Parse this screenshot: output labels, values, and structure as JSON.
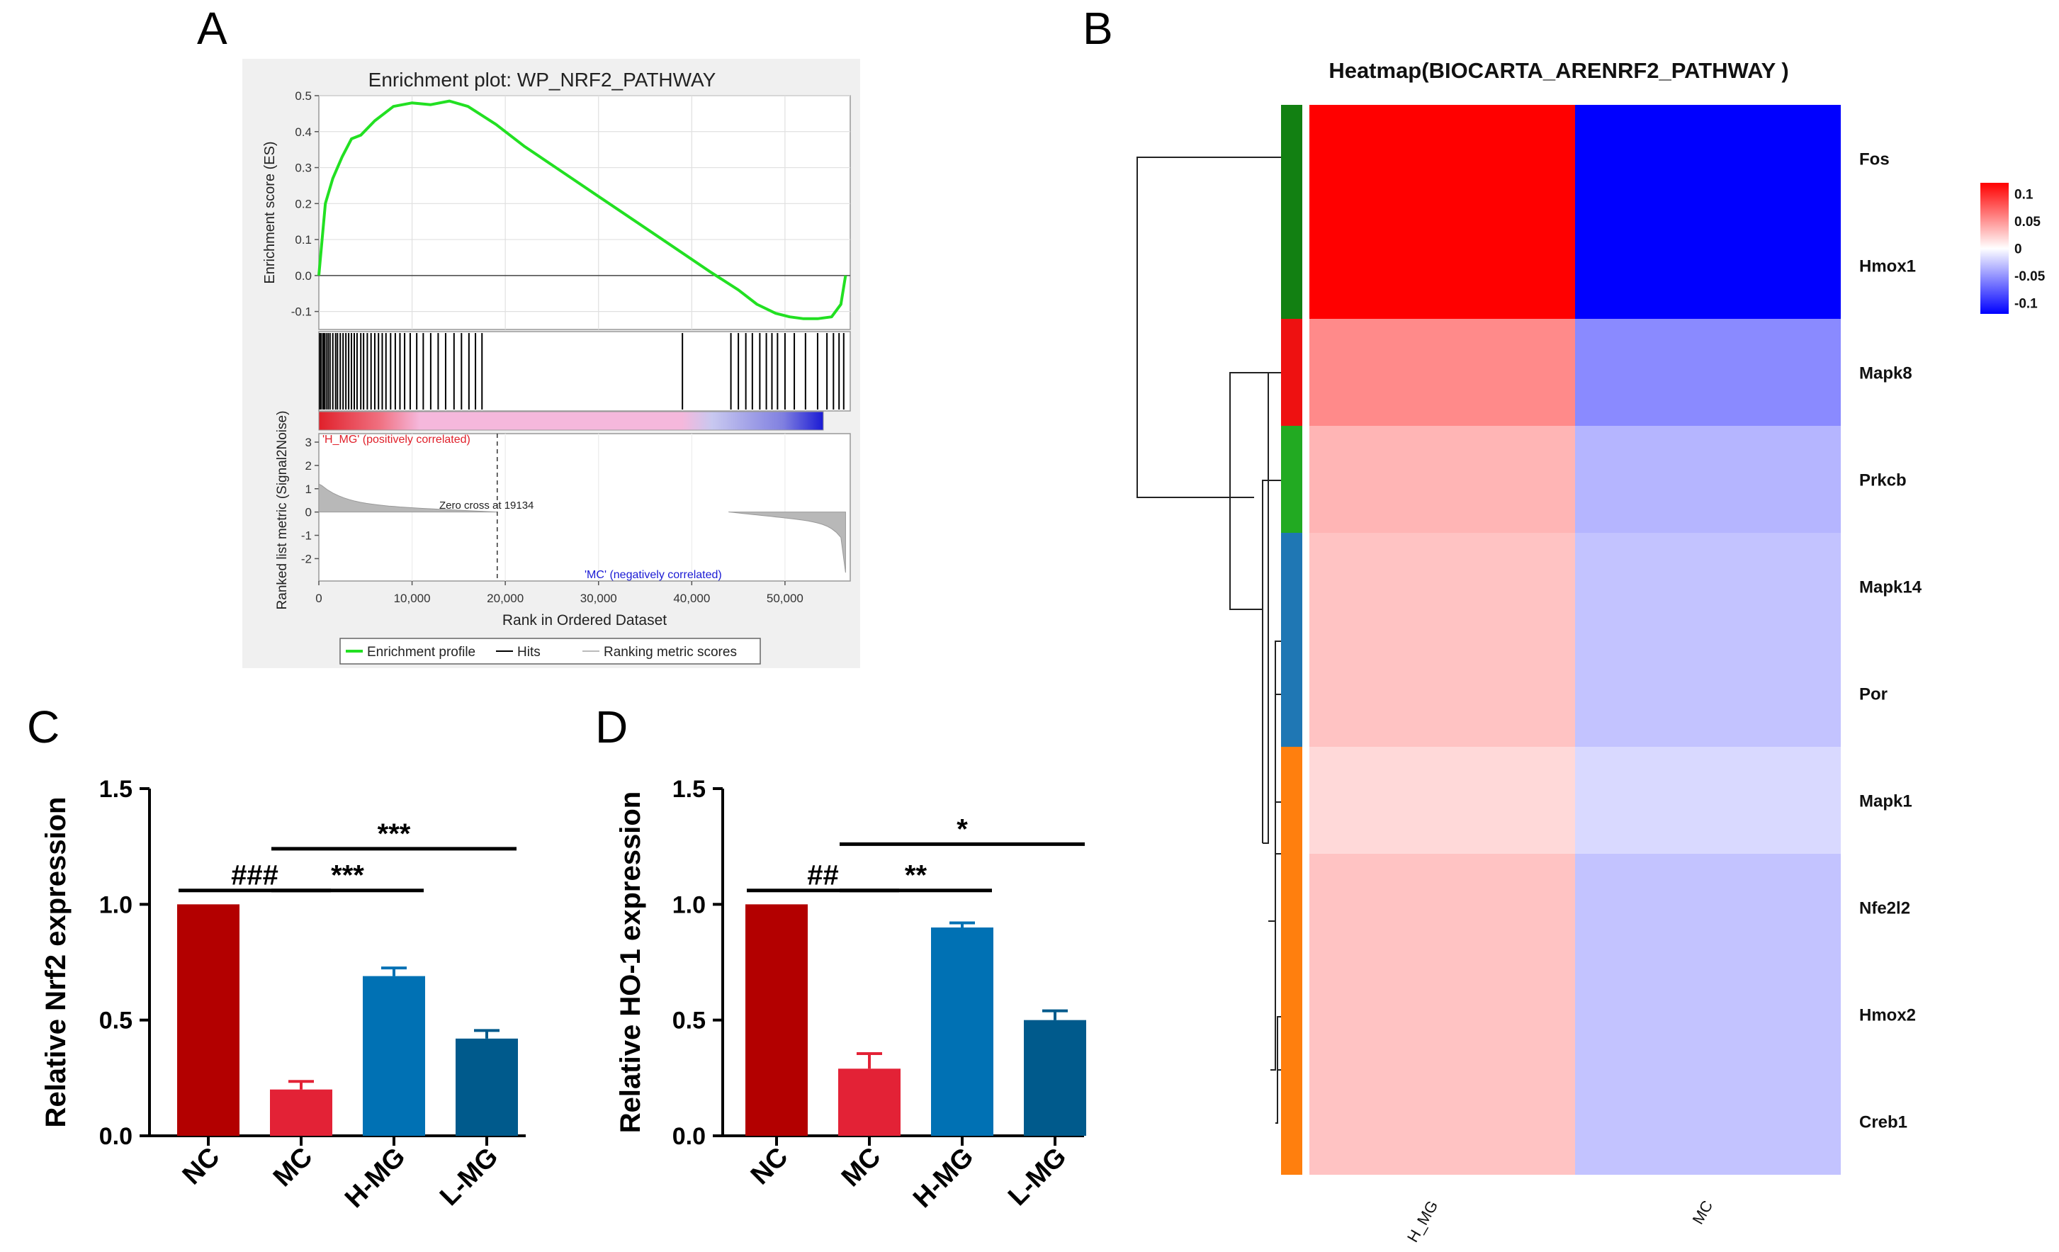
{
  "panels": {
    "A": "A",
    "B": "B",
    "C": "C",
    "D": "D"
  },
  "chart_data": [
    {
      "id": "A",
      "type": "line",
      "title": "Enrichment plot: WP_NRF2_PATHWAY",
      "ylabel_top": "Enrichment score (ES)",
      "ylabel_bottom": "Ranked list metric (Signal2Noise)",
      "xlabel": "Rank in Ordered Dataset",
      "es_yticks": [
        "0.5",
        "0.4",
        "0.3",
        "0.2",
        "0.1",
        "0.0",
        "-0.1"
      ],
      "metric_yticks": [
        "3",
        "2",
        "1",
        "0",
        "-1",
        "-2"
      ],
      "xticks": [
        "0",
        "10,000",
        "20,000",
        "30,000",
        "40,000",
        "50,000"
      ],
      "xlim": [
        0,
        57000
      ],
      "es_ylim": [
        -0.15,
        0.5
      ],
      "es_curve": {
        "x": [
          0,
          700,
          1500,
          2500,
          3500,
          4500,
          6000,
          8000,
          10000,
          12000,
          14000,
          16000,
          19000,
          22000,
          26000,
          30000,
          34000,
          38000,
          42000,
          45000,
          47000,
          49000,
          50500,
          52000,
          53500,
          55000,
          56000,
          56500
        ],
        "y": [
          0,
          0.2,
          0.27,
          0.33,
          0.38,
          0.39,
          0.43,
          0.47,
          0.48,
          0.475,
          0.485,
          0.47,
          0.42,
          0.36,
          0.29,
          0.22,
          0.15,
          0.08,
          0.01,
          -0.04,
          -0.08,
          -0.105,
          -0.115,
          -0.12,
          -0.12,
          -0.115,
          -0.08,
          0.0
        ]
      },
      "hits": [
        100,
        250,
        450,
        600,
        800,
        1000,
        1200,
        1500,
        1800,
        2000,
        2300,
        2600,
        2900,
        3200,
        3500,
        3800,
        4100,
        4500,
        4800,
        5200,
        5600,
        6000,
        6400,
        6800,
        7200,
        7700,
        8200,
        8700,
        9200,
        9800,
        10500,
        11200,
        12000,
        12800,
        13600,
        14500,
        15300,
        16100,
        16800,
        17500,
        39000,
        44200,
        45000,
        45800,
        46500,
        47300,
        48000,
        48600,
        49200,
        50000,
        51000,
        52200,
        53500,
        54500,
        55200,
        55800,
        56300
      ],
      "zero_cross_label": "Zero cross at 19134",
      "zero_cross": 19134,
      "pos_label": "'H_MG' (positively correlated)",
      "neg_label": "'MC' (negatively correlated)",
      "legend": [
        "Enrichment profile",
        "Hits",
        "Ranking metric scores"
      ],
      "colors": {
        "es": "#22e022",
        "pos": "#e0202a",
        "neg": "#1a1ad4",
        "mid": "#f5b8dc"
      }
    },
    {
      "id": "B",
      "type": "heatmap",
      "title": "Heatmap(BIOCARTA_ARENRF2_PATHWAY )",
      "columns": [
        "H_MG",
        "MC"
      ],
      "rows": [
        "Fos",
        "Hmox1",
        "Mapk8",
        "Prkcb",
        "Mapk14",
        "Por",
        "Mapk1",
        "Nfe2l2",
        "Hmox2",
        "Creb1"
      ],
      "values": [
        [
          0.12,
          -0.12
        ],
        [
          0.12,
          -0.12
        ],
        [
          0.055,
          -0.055
        ],
        [
          0.035,
          -0.035
        ],
        [
          0.028,
          -0.028
        ],
        [
          0.028,
          -0.028
        ],
        [
          0.018,
          -0.018
        ],
        [
          0.028,
          -0.028
        ],
        [
          0.028,
          -0.028
        ],
        [
          0.028,
          -0.028
        ]
      ],
      "row_groups": [
        "#128012",
        "#128012",
        "#ee1111",
        "#22aa22",
        "#1f77b4",
        "#1f77b4",
        "#ff7f0e",
        "#ff7f0e",
        "#ff7f0e",
        "#ff7f0e"
      ],
      "scale_ticks": [
        "0.1",
        "0.05",
        "0",
        "-0.05",
        "-0.1"
      ],
      "scale_values": [
        0.1,
        0.05,
        0,
        -0.05,
        -0.1
      ],
      "scale_range": [
        -0.12,
        0.12
      ]
    },
    {
      "id": "C",
      "type": "bar",
      "ylabel": "Relative Nrf2 expression",
      "categories": [
        "NC",
        "MC",
        "H-MG",
        "L-MG"
      ],
      "values": [
        1.0,
        0.2,
        0.69,
        0.42
      ],
      "errors": [
        0,
        0.035,
        0.035,
        0.035
      ],
      "colors": [
        "#b30000",
        "#e32236",
        "#0071b4",
        "#005a8c"
      ],
      "ylim": [
        0,
        1.5
      ],
      "yticks": [
        "0.0",
        "0.5",
        "1.0",
        "1.5"
      ],
      "annotations": [
        {
          "text": "###",
          "from": 0,
          "to": 1,
          "y": 1.06
        },
        {
          "text": "***",
          "from": 1,
          "to": 2,
          "y": 1.06
        },
        {
          "text": "***",
          "from": 1,
          "to": 3,
          "y": 1.24
        }
      ]
    },
    {
      "id": "D",
      "type": "bar",
      "ylabel": "Relative HO-1 expression",
      "categories": [
        "NC",
        "MC",
        "H-MG",
        "L-MG"
      ],
      "values": [
        1.0,
        0.29,
        0.9,
        0.5
      ],
      "errors": [
        0,
        0.065,
        0.02,
        0.04
      ],
      "colors": [
        "#b30000",
        "#e32236",
        "#0071b4",
        "#005a8c"
      ],
      "ylim": [
        0,
        1.5
      ],
      "yticks": [
        "0.0",
        "0.5",
        "1.0",
        "1.5"
      ],
      "annotations": [
        {
          "text": "##",
          "from": 0,
          "to": 1,
          "y": 1.06
        },
        {
          "text": "**",
          "from": 1,
          "to": 2,
          "y": 1.06
        },
        {
          "text": "*",
          "from": 1,
          "to": 3,
          "y": 1.26
        }
      ]
    }
  ]
}
